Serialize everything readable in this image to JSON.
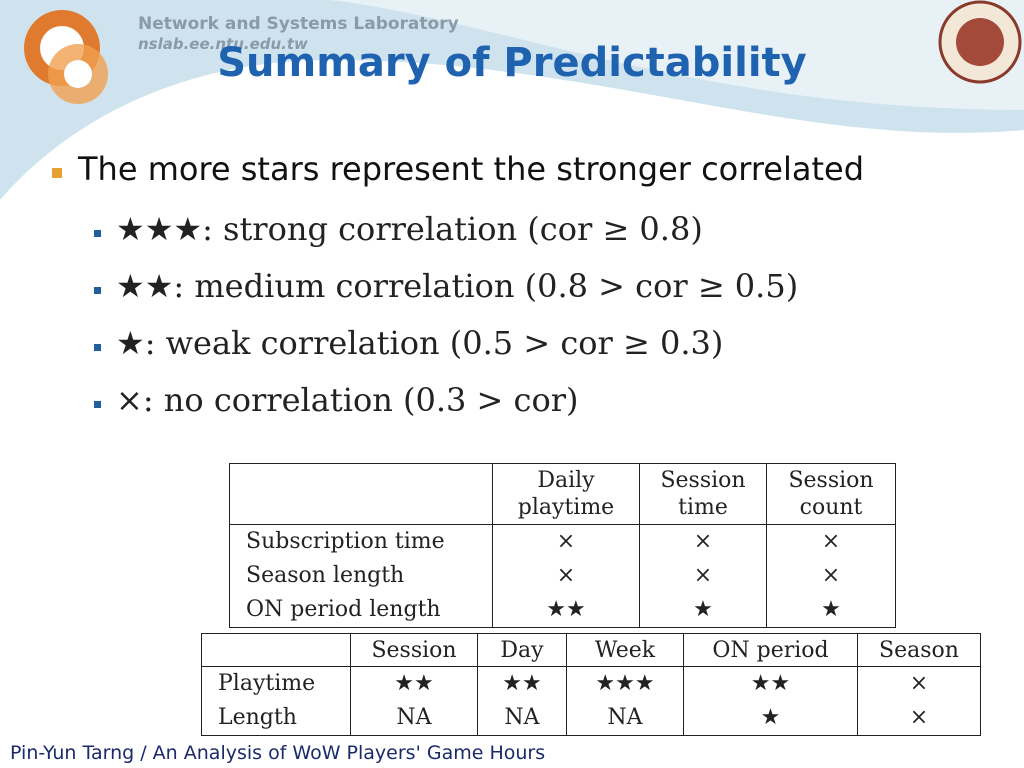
{
  "header": {
    "lab": "Network and Systems Laboratory",
    "url": "nslab.ee.ntu.edu.tw",
    "title": "Summary of Predictability"
  },
  "bullet": "The more stars represent the stronger correlated",
  "sub_bullets": [
    "★★★: strong correlation (cor ≥ 0.8)",
    "★★: medium correlation (0.8 > cor ≥ 0.5)",
    "★: weak correlation (0.5 > cor ≥ 0.3)",
    "×: no correlation (0.3 > cor)"
  ],
  "table1": {
    "columns": [
      "Daily playtime",
      "Session time",
      "Session count"
    ],
    "rows": [
      [
        "Subscription time",
        "×",
        "×",
        "×"
      ],
      [
        "Season length",
        "×",
        "×",
        "×"
      ],
      [
        "ON period length",
        "★★",
        "★",
        "★"
      ]
    ]
  },
  "table2": {
    "columns": [
      "Session",
      "Day",
      "Week",
      "ON period",
      "Season"
    ],
    "rows": [
      [
        "Playtime",
        "★★",
        "★★",
        "★★★",
        "★★",
        "×"
      ],
      [
        "Length",
        "NA",
        "NA",
        "NA",
        "★",
        "×"
      ]
    ]
  },
  "footer": "Pin-Yun Tarng / An Analysis of WoW Players' Game Hours"
}
